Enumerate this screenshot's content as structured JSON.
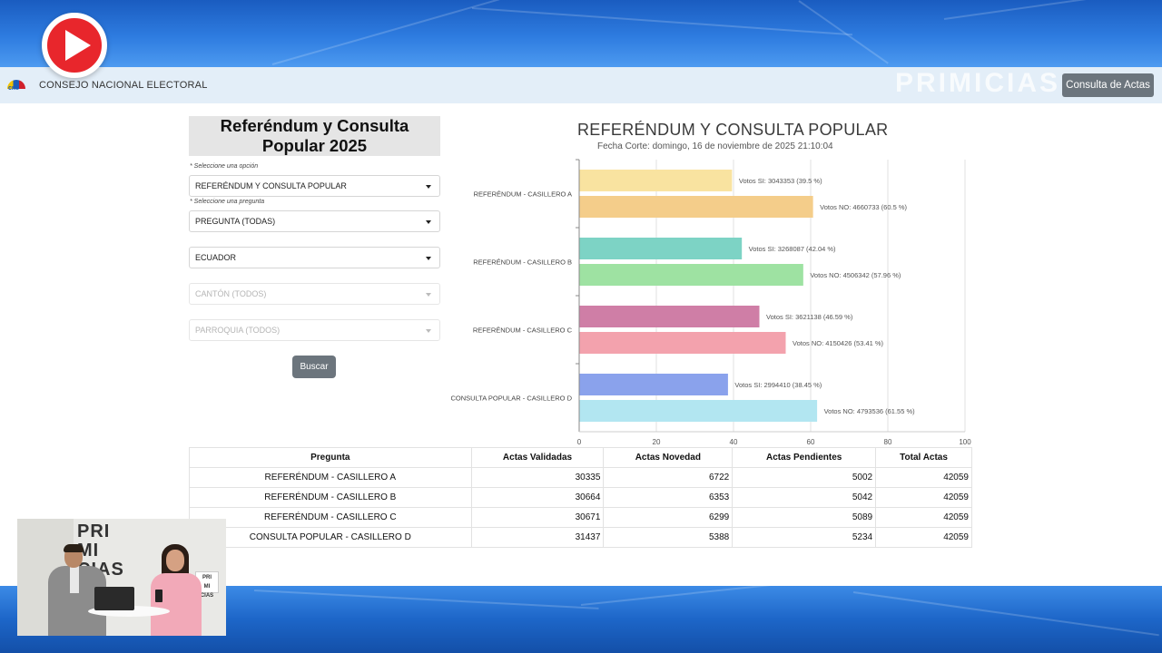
{
  "overlay": {
    "brand": "PRIMICIAS",
    "webcam_brand_lines": [
      "PRI",
      "MI",
      "CIAS"
    ],
    "webcam_sign_lines": [
      "PRI",
      "MI",
      "CIAS"
    ]
  },
  "header": {
    "logo_text": "cne",
    "org_name": "CONSEJO NACIONAL ELECTORAL",
    "consulta_button": "Consulta de Actas"
  },
  "filters": {
    "title": "Referéndum y Consulta Popular 2025",
    "option_hint": "* Seleccione una opción",
    "option_value": "REFERÉNDUM Y CONSULTA POPULAR",
    "question_hint": "* Seleccione una pregunta",
    "question_value": "PREGUNTA (TODAS)",
    "province_value": "ECUADOR",
    "canton_value": "CANTÓN (TODOS)",
    "parish_value": "PARROQUIA (TODOS)",
    "search_button": "Buscar"
  },
  "chart_data": {
    "type": "bar",
    "orientation": "horizontal",
    "title": "REFERÉNDUM Y CONSULTA POPULAR",
    "subtitle": "Fecha Corte: domingo, 16 de noviembre de 2025 21:10:04",
    "categories": [
      "REFERÉNDUM - CASILLERO A",
      "REFERÉNDUM - CASILLERO B",
      "REFERÉNDUM - CASILLERO C",
      "CONSULTA POPULAR - CASILLERO D"
    ],
    "xlim": [
      0,
      100
    ],
    "xticks": [
      0,
      20,
      40,
      60,
      80,
      100
    ],
    "grid": true,
    "bars": [
      {
        "category": 0,
        "percent": 39.5,
        "label": "Votos SI: 3043353 (39.5 %)",
        "color": "#f9e3a0"
      },
      {
        "category": 0,
        "percent": 60.5,
        "label": "Votos NO: 4660733 (60.5 %)",
        "color": "#f4cd8a"
      },
      {
        "category": 1,
        "percent": 42.04,
        "label": "Votos SI: 3268087 (42.04 %)",
        "color": "#7dd3c5"
      },
      {
        "category": 1,
        "percent": 57.96,
        "label": "Votos NO: 4506342 (57.96 %)",
        "color": "#9ee2a2"
      },
      {
        "category": 2,
        "percent": 46.59,
        "label": "Votos SI: 3621138 (46.59 %)",
        "color": "#cf7ea6"
      },
      {
        "category": 2,
        "percent": 53.41,
        "label": "Votos NO: 4150426 (53.41 %)",
        "color": "#f3a2ad"
      },
      {
        "category": 3,
        "percent": 38.45,
        "label": "Votos SI: 2994410 (38.45 %)",
        "color": "#8aa2ec"
      },
      {
        "category": 3,
        "percent": 61.55,
        "label": "Votos NO: 4793536 (61.55 %)",
        "color": "#b2e6f1"
      }
    ]
  },
  "table": {
    "headers": [
      "Pregunta",
      "Actas Validadas",
      "Actas Novedad",
      "Actas Pendientes",
      "Total Actas"
    ],
    "rows": [
      [
        "REFERÉNDUM - CASILLERO A",
        "30335",
        "6722",
        "5002",
        "42059"
      ],
      [
        "REFERÉNDUM - CASILLERO B",
        "30664",
        "6353",
        "5042",
        "42059"
      ],
      [
        "REFERÉNDUM - CASILLERO C",
        "30671",
        "6299",
        "5089",
        "42059"
      ],
      [
        "CONSULTA POPULAR - CASILLERO D",
        "31437",
        "5388",
        "5234",
        "42059"
      ]
    ]
  }
}
